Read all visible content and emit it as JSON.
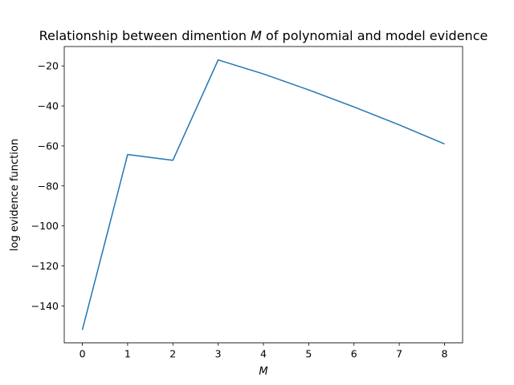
{
  "chart_data": {
    "type": "line",
    "title_pre": "Relationship between dimention ",
    "title_var": "M",
    "title_post": " of polynomial and model evidence",
    "xlabel": "M",
    "ylabel": "log evidence function",
    "x": [
      0,
      1,
      2,
      3,
      4,
      5,
      6,
      7,
      8
    ],
    "x_ticks": [
      "0",
      "1",
      "2",
      "3",
      "4",
      "5",
      "6",
      "7",
      "8"
    ],
    "y_ticks": [
      -140,
      -120,
      -100,
      -80,
      -60,
      -40,
      -20
    ],
    "y_tick_labels": [
      "−140",
      "−120",
      "−100",
      "−80",
      "−60",
      "−40",
      "−20"
    ],
    "xlim": [
      -0.4,
      8.4
    ],
    "ylim": [
      -158.5,
      -10.3
    ],
    "grid": false,
    "series": [
      {
        "values": [
          -152,
          -64.3,
          -67.2,
          -17,
          -24,
          -32,
          -40.5,
          -49.5,
          -59
        ],
        "color": "#1f77b4"
      }
    ]
  }
}
